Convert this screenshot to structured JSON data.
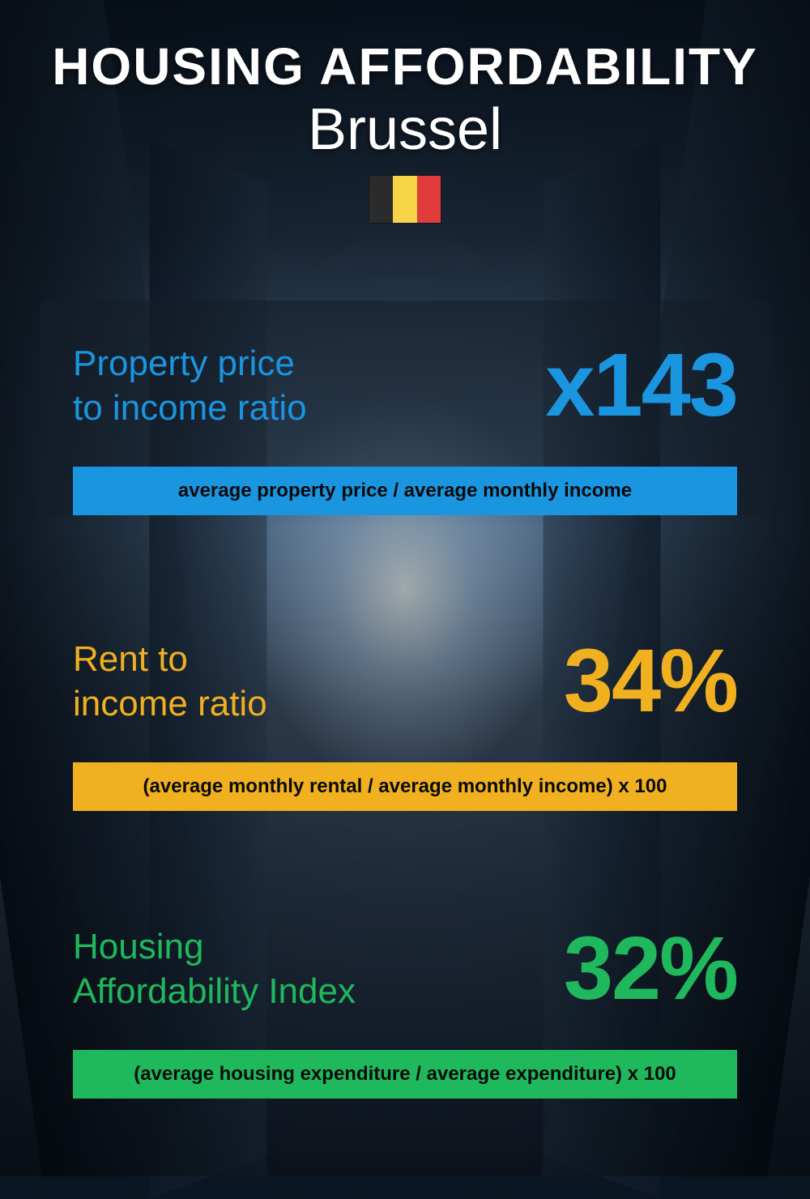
{
  "header": {
    "title": "HOUSING AFFORDABILITY",
    "subtitle": "Brussel",
    "flag_colors": [
      "#2b2b2b",
      "#f5d547",
      "#e03c3c"
    ]
  },
  "metrics": [
    {
      "label": "Property price\nto income ratio",
      "value": "x143",
      "formula": "average property price / average monthly income",
      "label_color": "#1a95e0",
      "value_color": "#1a95e0",
      "bar_color": "#1a95e0",
      "has_background_panel": true
    },
    {
      "label": "Rent to\nincome ratio",
      "value": "34%",
      "formula": "(average monthly rental / average monthly income) x 100",
      "label_color": "#f0b020",
      "value_color": "#f0b020",
      "bar_color": "#f0b020",
      "has_background_panel": false
    },
    {
      "label": "Housing\nAffordability Index",
      "value": "32%",
      "formula": "(average housing expenditure / average expenditure) x 100",
      "label_color": "#1fb85c",
      "value_color": "#1fb85c",
      "bar_color": "#1fb85c",
      "has_background_panel": false
    }
  ],
  "styling": {
    "title_color": "#ffffff",
    "subtitle_color": "#ffffff",
    "formula_text_color": "#0a0a0a",
    "background_gradient": [
      "#0a1522",
      "#1a2838",
      "#4a6580",
      "#2a3848",
      "#0f1825"
    ]
  }
}
